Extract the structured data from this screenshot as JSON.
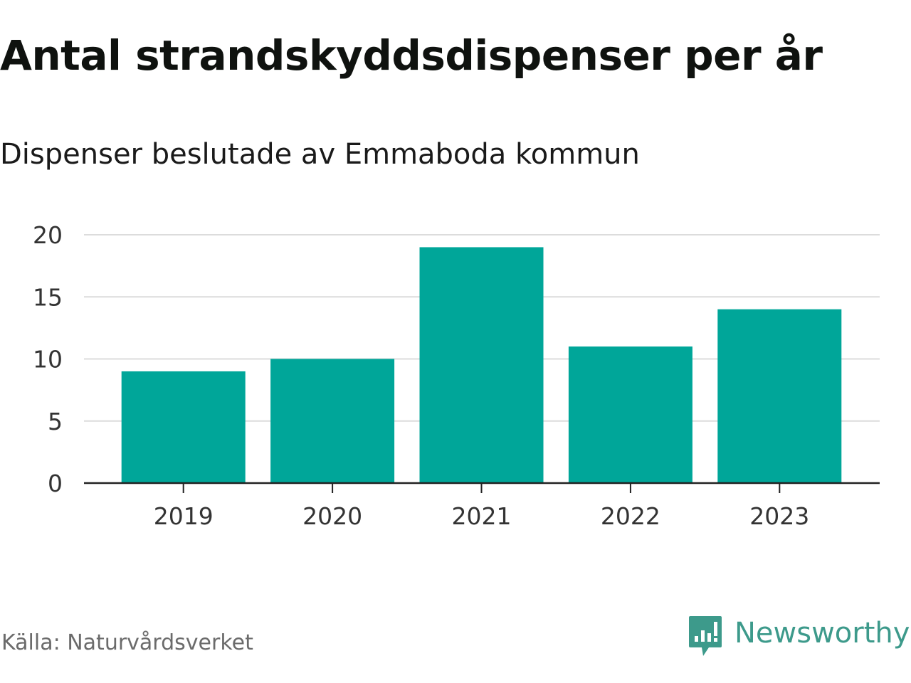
{
  "header": {
    "title": "Antal strandskyddsdispenser per år",
    "subtitle": "Dispenser beslutade av Emmaboda kommun"
  },
  "footer": {
    "source": "Källa: Naturvårdsverket",
    "brand": "Newsworthy"
  },
  "colors": {
    "bar": "#00a699",
    "brand": "#3d9a8b"
  },
  "icons": {
    "brand_logo": "newsworthy-logo-icon"
  },
  "chart_data": {
    "type": "bar",
    "title": "Antal strandskyddsdispenser per år",
    "subtitle": "Dispenser beslutade av Emmaboda kommun",
    "categories": [
      "2019",
      "2020",
      "2021",
      "2022",
      "2023"
    ],
    "values": [
      9,
      10,
      19,
      11,
      14
    ],
    "xlabel": "",
    "ylabel": "",
    "ylim": [
      0,
      20
    ],
    "yticks": [
      0,
      5,
      10,
      15,
      20
    ],
    "grid": true,
    "legend": "none"
  }
}
